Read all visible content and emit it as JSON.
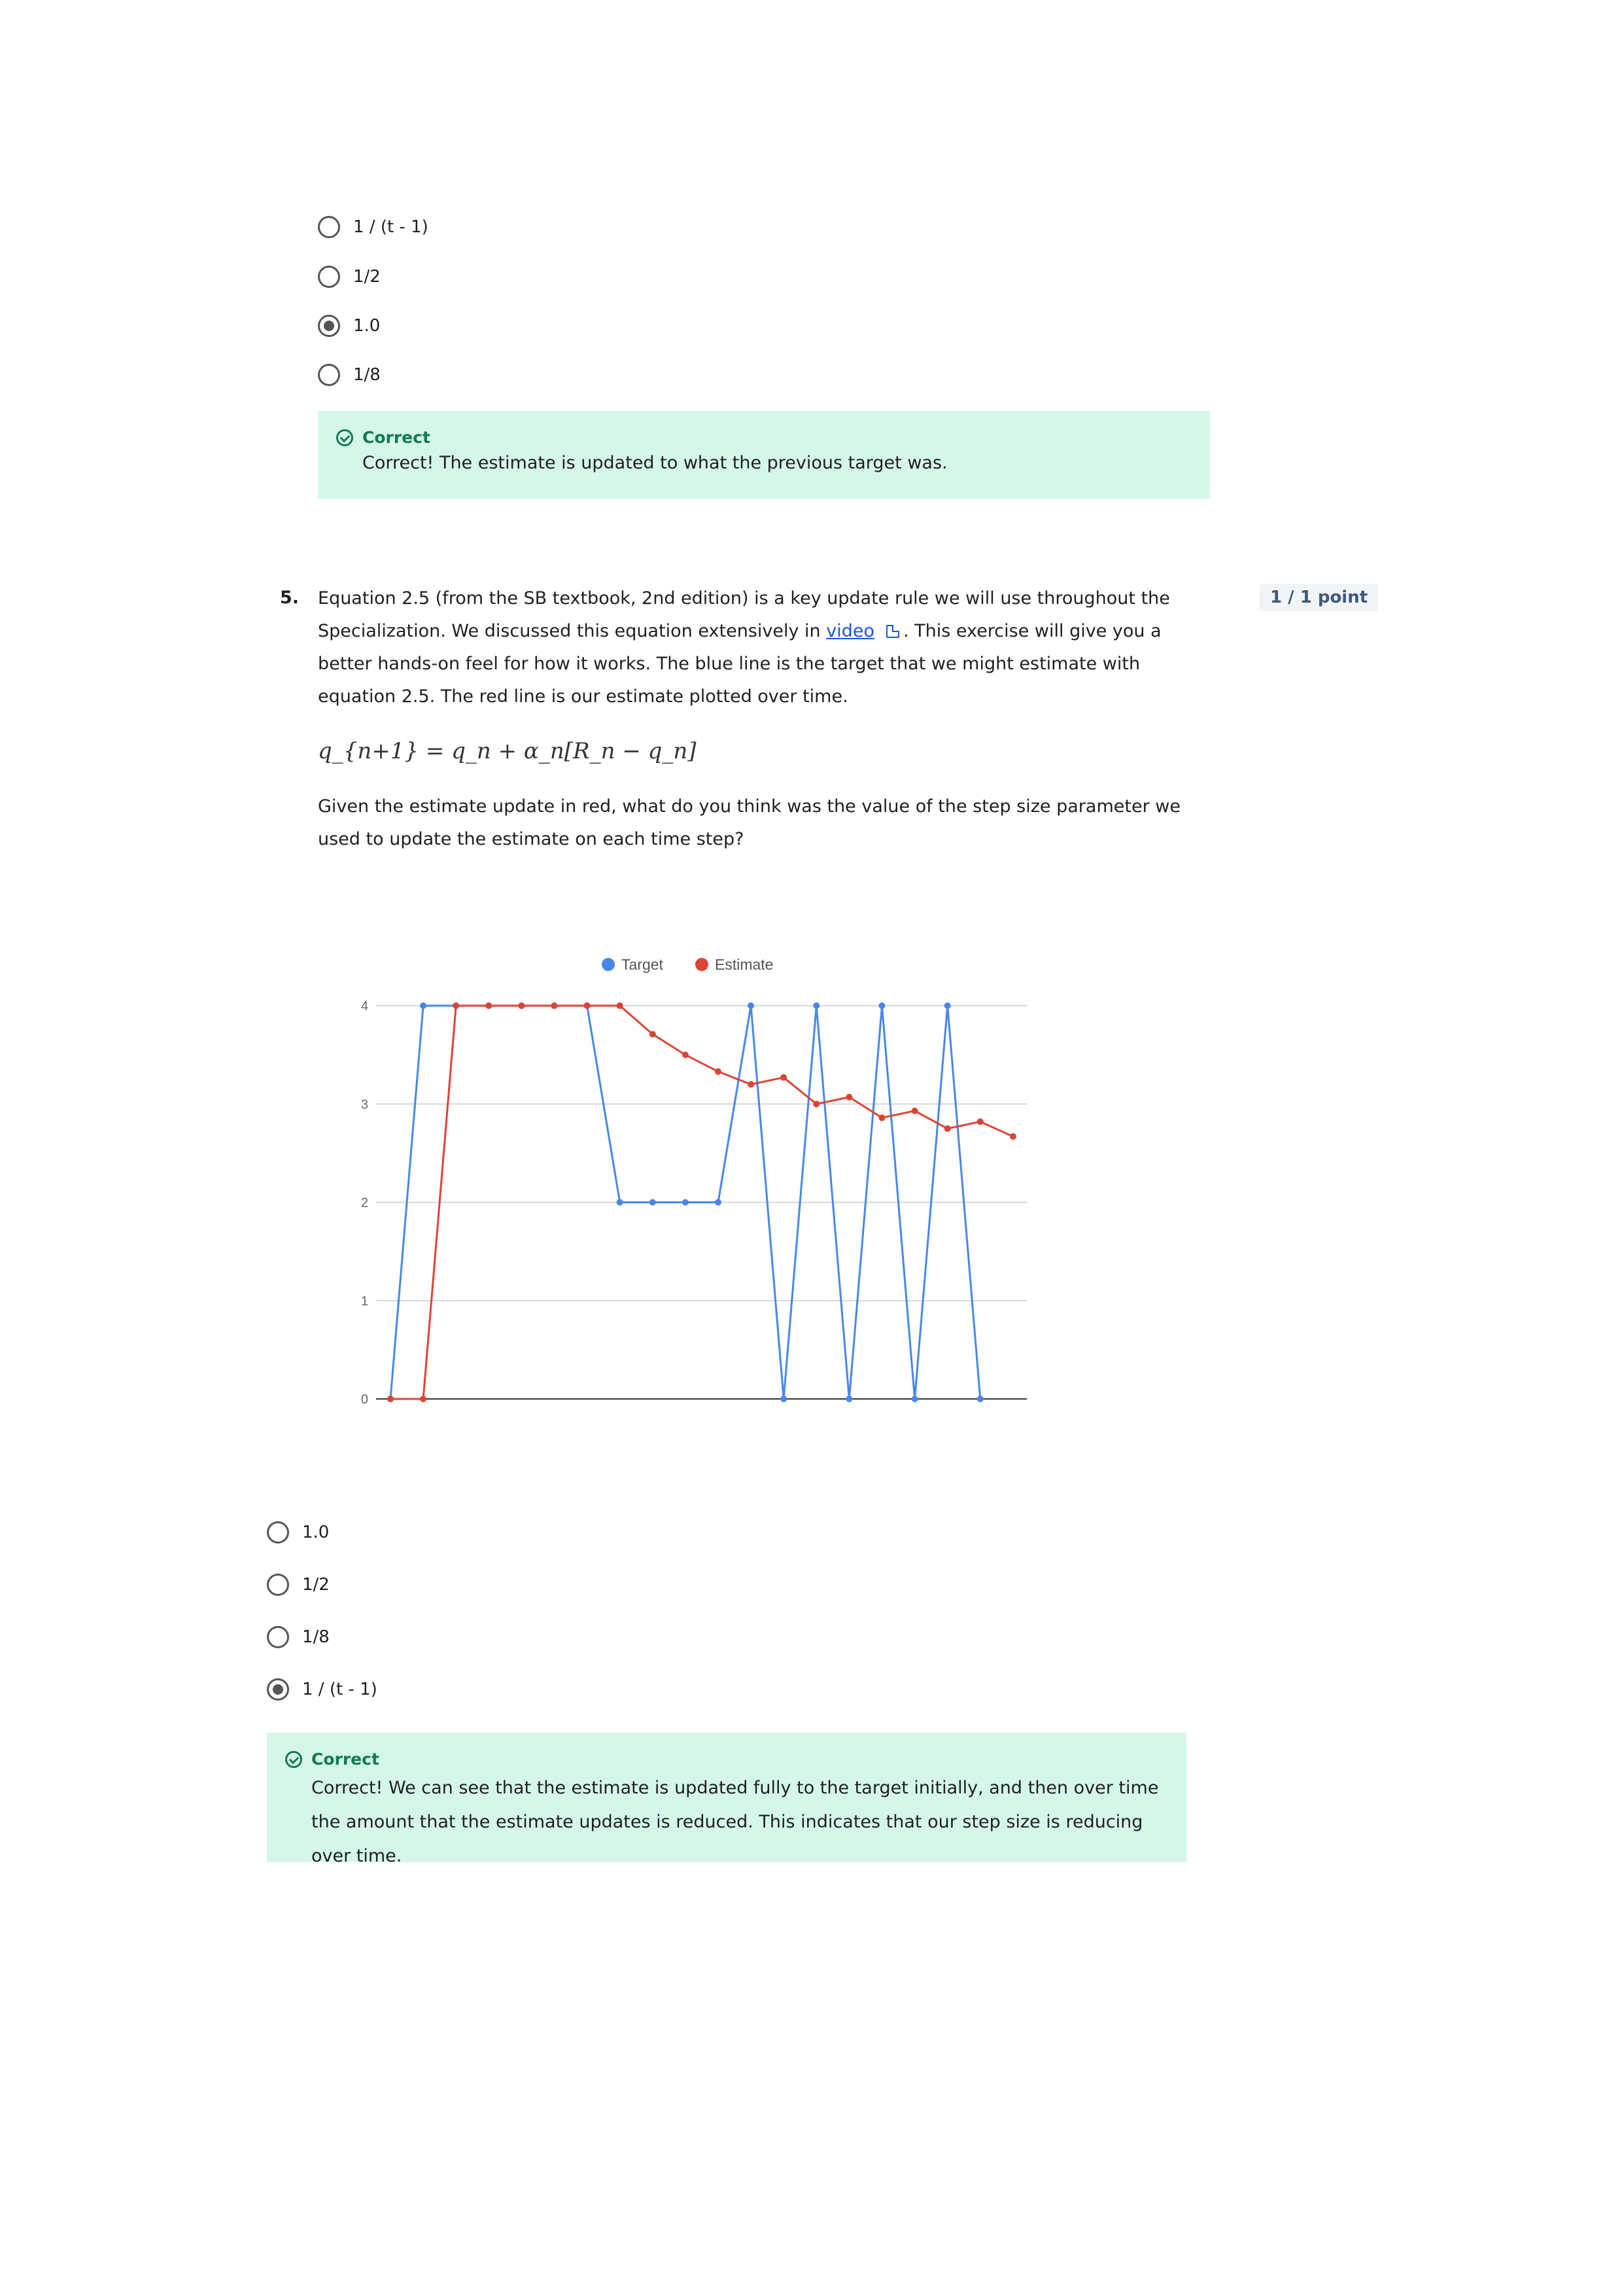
{
  "prev_question": {
    "options": [
      "1 / (t - 1)",
      "1/2",
      "1.0",
      "1/8"
    ],
    "selected_index": 2,
    "feedback": {
      "title": "Correct",
      "text": "Correct! The estimate is updated to what the previous target was."
    }
  },
  "question5": {
    "number": "5.",
    "points": "1 / 1 point",
    "text_before_link": "Equation 2.5 (from the SB textbook, 2nd edition) is a key update rule we will use throughout the Specialization. We discussed this equation extensively in ",
    "link_text": "video",
    "text_after_link": ". This exercise will give you a better hands-on feel for how it works. The blue line is the target that we might estimate with equation 2.5. The red line is our estimate plotted over time.",
    "equation": "q_{n+1} = q_n + α_n[R_n − q_n]",
    "prompt": "Given the estimate update in red, what do you think was the value of the step size parameter we used to update the estimate on each time step?",
    "options": [
      "1.0",
      "1/2",
      "1/8",
      "1 / (t - 1)"
    ],
    "selected_index": 3,
    "feedback": {
      "title": "Correct",
      "text": "Correct! We can see that the estimate is updated fully to the target initially, and then over time the amount that the estimate updates is reduced. This indicates that our step size is reducing over time."
    }
  },
  "chart_data": {
    "type": "line",
    "x": [
      0,
      1,
      2,
      3,
      4,
      5,
      6,
      7,
      8,
      9,
      10,
      11,
      12,
      13,
      14,
      15,
      16,
      17,
      18,
      19
    ],
    "series": [
      {
        "name": "Target",
        "color": "#4a86e8",
        "values": [
          0,
          4,
          4,
          4,
          4,
          4,
          4,
          2,
          2,
          2,
          2,
          4,
          0,
          4,
          0,
          4,
          0,
          4,
          0,
          null
        ]
      },
      {
        "name": "Estimate",
        "color": "#db4437",
        "values": [
          0,
          0,
          4,
          4,
          4,
          4,
          4,
          4,
          3.71,
          3.5,
          3.33,
          3.2,
          3.27,
          3.0,
          3.07,
          2.86,
          2.93,
          2.75,
          2.82,
          2.67
        ]
      }
    ],
    "yticks": [
      0,
      1,
      2,
      3,
      4
    ],
    "ylim": [
      0,
      4
    ],
    "legend": "top",
    "grid": true
  }
}
